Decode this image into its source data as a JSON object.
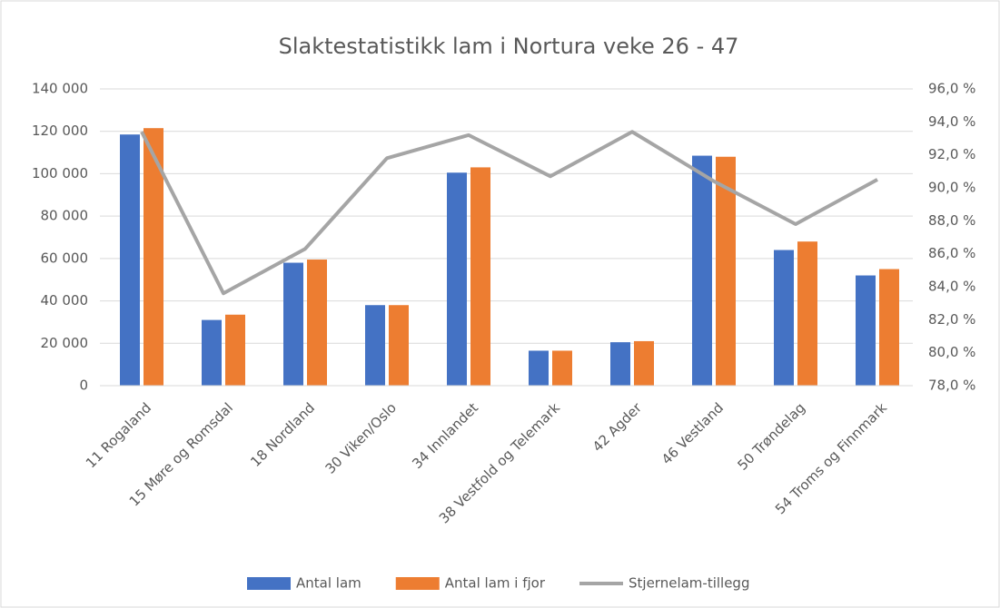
{
  "chart_data": {
    "type": "bar",
    "title": "Slaktestatistikk lam i Nortura veke 26 - 47",
    "categories": [
      "11 Rogaland",
      "15 Møre og Romsdal",
      "18 Nordland",
      "30 Viken/Oslo",
      "34 Innlandet",
      "38 Vestfold og Telemark",
      "42 Agder",
      "46 Vestland",
      "50 Trøndelag",
      "54 Troms og Finnmark"
    ],
    "series": [
      {
        "name": "Antal lam",
        "type": "bar",
        "color": "#4472c4",
        "values": [
          118500,
          31000,
          58000,
          38000,
          100500,
          16500,
          20500,
          108500,
          64000,
          52000
        ]
      },
      {
        "name": "Antal lam i fjor",
        "type": "bar",
        "color": "#ed7d31",
        "values": [
          121500,
          33500,
          59500,
          38000,
          103000,
          16500,
          21000,
          108000,
          68000,
          55000
        ]
      },
      {
        "name": "Stjernelam-tillegg",
        "type": "line",
        "axis": "y2",
        "color": "#a5a5a5",
        "values": [
          93.4,
          83.6,
          86.3,
          91.8,
          93.2,
          90.7,
          93.4,
          90.4,
          87.8,
          90.5
        ]
      }
    ],
    "ylim": [
      0,
      140000
    ],
    "yticks": [
      0,
      {
        "value": 20000,
        "label": "20 000"
      },
      {
        "value": 40000,
        "label": "40 000"
      },
      {
        "value": 60000,
        "label": "60 000"
      },
      {
        "value": 80000,
        "label": "80 000"
      },
      {
        "value": 100000,
        "label": "100 000"
      },
      {
        "value": 120000,
        "label": "120 000"
      },
      {
        "value": 140000,
        "label": "140 000"
      }
    ],
    "y2lim": [
      78,
      96
    ],
    "y2ticks": [
      {
        "value": 78,
        "label": "78,0 %"
      },
      {
        "value": 80,
        "label": "80,0 %"
      },
      {
        "value": 82,
        "label": "82,0 %"
      },
      {
        "value": 84,
        "label": "84,0 %"
      },
      {
        "value": 86,
        "label": "86,0 %"
      },
      {
        "value": 88,
        "label": "88,0 %"
      },
      {
        "value": 90,
        "label": "90,0 %"
      },
      {
        "value": 92,
        "label": "92,0 %"
      },
      {
        "value": 94,
        "label": "94,0 %"
      },
      {
        "value": 96,
        "label": "96,0 %"
      }
    ],
    "grid": true,
    "legend": "bottom"
  }
}
